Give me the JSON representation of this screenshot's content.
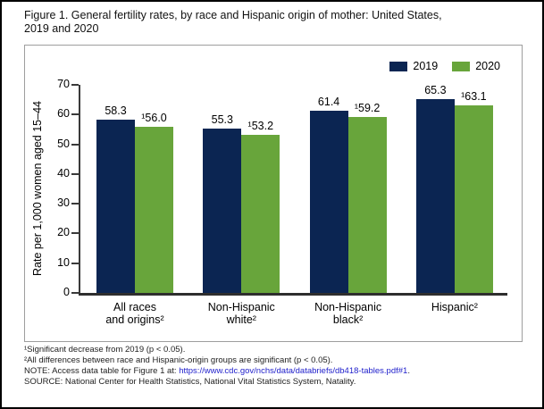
{
  "title_lines": [
    "Figure 1. General fertility rates, by race and Hispanic origin of mother: United States,",
    "2019 and 2020"
  ],
  "chart_data": {
    "type": "bar",
    "title": "Figure 1. General fertility rates, by race and Hispanic origin of mother: United States, 2019 and 2020",
    "categories": [
      "All races and origins²",
      "Non-Hispanic white²",
      "Non-Hispanic black²",
      "Hispanic²"
    ],
    "category_lines": [
      [
        "All races",
        "and origins²"
      ],
      [
        "Non-Hispanic",
        "white²"
      ],
      [
        "Non-Hispanic",
        "black²"
      ],
      [
        "Hispanic²"
      ]
    ],
    "series": [
      {
        "name": "2019",
        "color": "#0b2552",
        "values": [
          58.3,
          55.3,
          61.4,
          65.3
        ],
        "labels": [
          "58.3",
          "55.3",
          "61.4",
          "65.3"
        ]
      },
      {
        "name": "2020",
        "color": "#68a53b",
        "values": [
          56.0,
          53.2,
          59.2,
          63.1
        ],
        "labels": [
          "¹56.0",
          "¹53.2",
          "¹59.2",
          "¹63.1"
        ]
      }
    ],
    "xlabel": "",
    "ylabel": "Rate per 1,000 women aged 15–44",
    "ylim": [
      0,
      70
    ],
    "ytick_step": 10,
    "grid": false,
    "legend_position": "top-right"
  },
  "footnotes": {
    "f1": "¹Significant decrease from 2019 (p < 0.05).",
    "f2": "²All differences between race and Hispanic-origin groups are significant (p < 0.05).",
    "note_prefix": "NOTE: Access data table for Figure 1 at: ",
    "note_link": "https://www.cdc.gov/nchs/data/databriefs/db418-tables.pdf#1",
    "note_suffix": ".",
    "source": "SOURCE: National Center for Health Statistics, National Vital Statistics System, Natality."
  },
  "colors": {
    "navy": "#0b2552",
    "green": "#68a53b",
    "link_blue": "#2222cc",
    "axis": "#3a3a3a"
  }
}
